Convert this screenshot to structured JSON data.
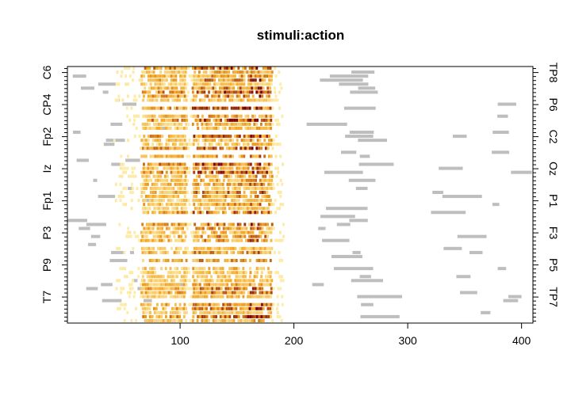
{
  "chart_data": {
    "type": "heatmap",
    "title": "stimuli:action",
    "xlabel": "",
    "ylabel": "",
    "xlim": [
      1,
      410
    ],
    "x_ticks": [
      100,
      200,
      300,
      400
    ],
    "rows": 64,
    "left_labels": [
      "C6",
      "CP4",
      "Fp2",
      "Iz",
      "Fp1",
      "P3",
      "P9",
      "T7"
    ],
    "right_labels": [
      "TP8",
      "P6",
      "C2",
      "Oz",
      "P1",
      "F3",
      "P5",
      "TP7"
    ],
    "colors": {
      "significant_gray": "#bebebe",
      "low": "#ffffcc",
      "mid": "#f5a623",
      "high": "#7a0000",
      "frame": "#000000"
    }
  }
}
